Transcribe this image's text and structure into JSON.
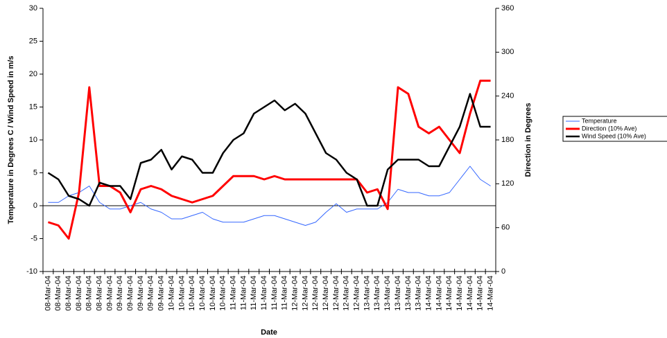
{
  "chart_data": {
    "type": "line",
    "x_label": "Date",
    "y_label": "Temperature in Degrees C / Wind Speed in m/s",
    "y2_label": "Direction in Degrees",
    "categories": [
      "08-Mar-04",
      "08-Mar-04",
      "08-Mar-04",
      "08-Mar-04",
      "08-Mar-04",
      "08-Mar-04",
      "09-Mar-04",
      "09-Mar-04",
      "09-Mar-04",
      "09-Mar-04",
      "09-Mar-04",
      "09-Mar-04",
      "10-Mar-04",
      "10-Mar-04",
      "10-Mar-04",
      "10-Mar-04",
      "10-Mar-04",
      "10-Mar-04",
      "11-Mar-04",
      "11-Mar-04",
      "11-Mar-04",
      "11-Mar-04",
      "11-Mar-04",
      "11-Mar-04",
      "12-Mar-04",
      "12-Mar-04",
      "12-Mar-04",
      "12-Mar-04",
      "12-Mar-04",
      "12-Mar-04",
      "12-Mar-04",
      "13-Mar-04",
      "13-Mar-04",
      "13-Mar-04",
      "13-Mar-04",
      "13-Mar-04",
      "13-Mar-04",
      "14-Mar-04",
      "14-Mar-04",
      "14-Mar-04",
      "14-Mar-04",
      "14-Mar-04",
      "14-Mar-04",
      "14-Mar-04"
    ],
    "series": [
      {
        "name": "Temperature",
        "color": "#3366ff",
        "width": 1,
        "values": [
          0.5,
          0.5,
          1.5,
          2,
          3,
          0.5,
          -0.5,
          -0.5,
          0,
          0.5,
          -0.5,
          -1,
          -2,
          -2,
          -1.5,
          -1,
          -2,
          -2.5,
          -2.5,
          -2.5,
          -2,
          -1.5,
          -1.5,
          -2,
          -2.5,
          -3,
          -2.5,
          -1,
          0.3,
          -1,
          -0.5,
          -0.5,
          -0.5,
          0.5,
          2.5,
          2,
          2,
          1.5,
          1.5,
          2,
          4,
          6,
          4,
          3
        ]
      },
      {
        "name": "Direction (10% Ave)",
        "color": "#ff0000",
        "width": 3,
        "axis": "y2",
        "values": [
          67.5,
          63,
          45,
          108,
          252,
          117,
          117,
          108,
          81,
          112.5,
          117,
          112.5,
          103.5,
          99,
          94.5,
          99,
          103.5,
          117,
          130.5,
          130.5,
          130.5,
          126,
          130.5,
          126,
          126,
          126,
          126,
          126,
          126,
          126,
          126,
          108,
          112.5,
          85.5,
          252,
          243,
          198,
          189,
          198,
          180,
          162,
          216,
          261,
          261
        ]
      },
      {
        "name": "Wind Speed (10% Ave)",
        "color": "#000000",
        "width": 2.5,
        "values": [
          5,
          4,
          1.5,
          1,
          0,
          3.5,
          3,
          3,
          1,
          6.5,
          7,
          8.5,
          5.5,
          7.5,
          7,
          5,
          5,
          8,
          10,
          11,
          14,
          15,
          16,
          14.5,
          15.5,
          14,
          11,
          8,
          7,
          5,
          4,
          0,
          0,
          5.5,
          7,
          7,
          7,
          6,
          6,
          9,
          12,
          17,
          12,
          12
        ]
      }
    ],
    "ylim": [
      -10,
      30
    ],
    "yticks": [
      -10,
      -5,
      0,
      5,
      10,
      15,
      20,
      25,
      30
    ],
    "y2lim": [
      0,
      360
    ],
    "y2ticks": [
      0,
      60,
      120,
      180,
      240,
      300,
      360
    ],
    "legend": "right"
  }
}
